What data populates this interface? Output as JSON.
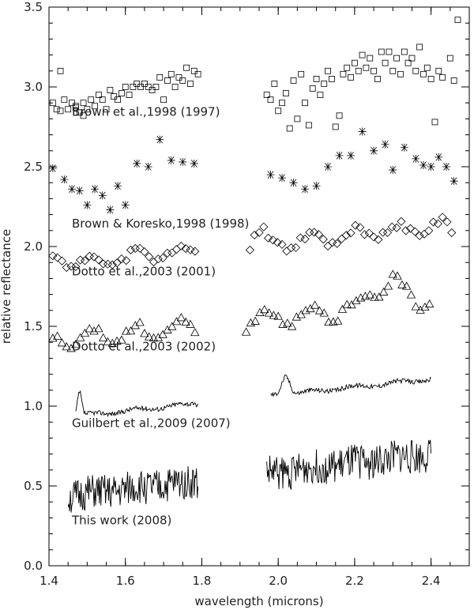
{
  "chart_data": {
    "type": "scatter",
    "xlabel": "wavelength (microns)",
    "ylabel": "relative reflectance",
    "xlim": [
      1.4,
      2.5
    ],
    "ylim": [
      0.0,
      3.5
    ],
    "x_ticks": [
      "1.4",
      "1.6",
      "1.8",
      "2.0",
      "2.2",
      "2.4"
    ],
    "y_ticks": [
      "0.0",
      "0.5",
      "1.0",
      "1.5",
      "2.0",
      "2.5",
      "3.0",
      "3.5"
    ],
    "grid": false,
    "series": [
      {
        "name": "Brown et al.,1998 (1997)",
        "marker": "square",
        "label_pos": [
          1.46,
          2.82
        ],
        "points": [
          [
            1.41,
            2.9
          ],
          [
            1.42,
            2.86
          ],
          [
            1.43,
            3.1
          ],
          [
            1.43,
            2.85
          ],
          [
            1.44,
            2.92
          ],
          [
            1.45,
            2.86
          ],
          [
            1.46,
            2.9
          ],
          [
            1.47,
            2.87
          ],
          [
            1.47,
            2.88
          ],
          [
            1.48,
            2.84
          ],
          [
            1.49,
            2.9
          ],
          [
            1.49,
            2.82
          ],
          [
            1.5,
            2.86
          ],
          [
            1.51,
            2.92
          ],
          [
            1.52,
            2.88
          ],
          [
            1.53,
            2.95
          ],
          [
            1.54,
            2.92
          ],
          [
            1.55,
            2.86
          ],
          [
            1.56,
            2.98
          ],
          [
            1.57,
            2.94
          ],
          [
            1.58,
            2.92
          ],
          [
            1.59,
            2.96
          ],
          [
            1.6,
            3.0
          ],
          [
            1.61,
            2.95
          ],
          [
            1.62,
            3.0
          ],
          [
            1.63,
            3.02
          ],
          [
            1.64,
            3.0
          ],
          [
            1.65,
            3.02
          ],
          [
            1.66,
            3.0
          ],
          [
            1.67,
            2.98
          ],
          [
            1.68,
            3.0
          ],
          [
            1.69,
            3.06
          ],
          [
            1.7,
            2.92
          ],
          [
            1.71,
            3.04
          ],
          [
            1.72,
            3.08
          ],
          [
            1.73,
            3.0
          ],
          [
            1.74,
            3.06
          ],
          [
            1.75,
            3.04
          ],
          [
            1.76,
            3.12
          ],
          [
            1.77,
            3.02
          ],
          [
            1.78,
            3.1
          ],
          [
            1.79,
            3.08
          ],
          [
            1.97,
            2.95
          ],
          [
            1.98,
            2.92
          ],
          [
            1.99,
            3.02
          ],
          [
            2.0,
            2.85
          ],
          [
            2.01,
            2.9
          ],
          [
            2.02,
            2.96
          ],
          [
            2.03,
            2.74
          ],
          [
            2.04,
            3.04
          ],
          [
            2.05,
            2.8
          ],
          [
            2.06,
            3.08
          ],
          [
            2.07,
            2.9
          ],
          [
            2.08,
            2.76
          ],
          [
            2.09,
            2.99
          ],
          [
            2.1,
            3.05
          ],
          [
            2.11,
            2.95
          ],
          [
            2.12,
            3.02
          ],
          [
            2.13,
            3.1
          ],
          [
            2.14,
            3.05
          ],
          [
            2.15,
            2.75
          ],
          [
            2.16,
            2.82
          ],
          [
            2.17,
            3.08
          ],
          [
            2.18,
            3.12
          ],
          [
            2.19,
            3.06
          ],
          [
            2.2,
            3.15
          ],
          [
            2.21,
            3.1
          ],
          [
            2.22,
            3.2
          ],
          [
            2.23,
            3.12
          ],
          [
            2.24,
            3.18
          ],
          [
            2.25,
            3.1
          ],
          [
            2.26,
            3.05
          ],
          [
            2.27,
            3.22
          ],
          [
            2.28,
            3.15
          ],
          [
            2.29,
            3.22
          ],
          [
            2.3,
            3.1
          ],
          [
            2.31,
            3.18
          ],
          [
            2.32,
            3.08
          ],
          [
            2.33,
            3.22
          ],
          [
            2.34,
            3.15
          ],
          [
            2.35,
            3.18
          ],
          [
            2.36,
            3.1
          ],
          [
            2.37,
            3.25
          ],
          [
            2.38,
            3.08
          ],
          [
            2.39,
            3.12
          ],
          [
            2.4,
            3.05
          ],
          [
            2.41,
            2.78
          ],
          [
            2.42,
            3.1
          ],
          [
            2.43,
            3.06
          ],
          [
            2.45,
            3.18
          ],
          [
            2.46,
            3.04
          ],
          [
            2.47,
            3.42
          ]
        ]
      },
      {
        "name": "Brown & Koresko,1998 (1998)",
        "marker": "asterisk",
        "label_pos": [
          1.46,
          2.12
        ],
        "points": [
          [
            1.41,
            2.49
          ],
          [
            1.44,
            2.42
          ],
          [
            1.46,
            2.36
          ],
          [
            1.48,
            2.35
          ],
          [
            1.5,
            2.26
          ],
          [
            1.52,
            2.36
          ],
          [
            1.54,
            2.32
          ],
          [
            1.56,
            2.23
          ],
          [
            1.58,
            2.38
          ],
          [
            1.6,
            2.26
          ],
          [
            1.63,
            2.52
          ],
          [
            1.66,
            2.5
          ],
          [
            1.69,
            2.67
          ],
          [
            1.72,
            2.54
          ],
          [
            1.75,
            2.53
          ],
          [
            1.78,
            2.52
          ],
          [
            1.98,
            2.45
          ],
          [
            2.01,
            2.43
          ],
          [
            2.04,
            2.4
          ],
          [
            2.07,
            2.36
          ],
          [
            2.1,
            2.38
          ],
          [
            2.13,
            2.5
          ],
          [
            2.16,
            2.57
          ],
          [
            2.19,
            2.57
          ],
          [
            2.22,
            2.72
          ],
          [
            2.25,
            2.6
          ],
          [
            2.28,
            2.64
          ],
          [
            2.3,
            2.48
          ],
          [
            2.33,
            2.62
          ],
          [
            2.36,
            2.55
          ],
          [
            2.38,
            2.51
          ],
          [
            2.4,
            2.5
          ],
          [
            2.42,
            2.56
          ],
          [
            2.44,
            2.5
          ],
          [
            2.46,
            2.41
          ]
        ]
      },
      {
        "name": "Dotto et al.,2003 (2001)",
        "marker": "diamond",
        "label_pos": [
          1.46,
          1.82
        ]
      },
      {
        "name": "Dotto et al.,2003 (2002)",
        "marker": "triangle",
        "label_pos": [
          1.46,
          1.35
        ]
      },
      {
        "name": "Guilbert et al.,2009 (2007)",
        "marker": "line",
        "label_pos": [
          1.46,
          0.87
        ]
      },
      {
        "name": "This work (2008)",
        "marker": "line",
        "label_pos": [
          1.46,
          0.26
        ]
      }
    ]
  }
}
